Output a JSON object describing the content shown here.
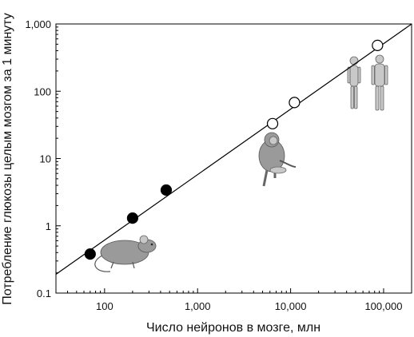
{
  "chart_data": {
    "type": "scatter",
    "xlabel": "Число нейронов в мозге, млн",
    "ylabel": "Потребление глюкозы целым мозгом за 1 минуту",
    "x_scale": "log",
    "y_scale": "log",
    "xlim": [
      30,
      200000
    ],
    "ylim": [
      0.1,
      1000
    ],
    "x_ticks": [
      100,
      1000,
      10000,
      100000
    ],
    "x_tick_labels": [
      "100",
      "1,000",
      "10,000",
      "100,000"
    ],
    "y_ticks": [
      0.1,
      1,
      10,
      100,
      1000
    ],
    "y_tick_labels": [
      "0.1",
      "1",
      "10",
      "100",
      "1,000"
    ],
    "grid": false,
    "series": [
      {
        "marker": "filled-circle",
        "color": "#000000",
        "points": [
          {
            "x": 70,
            "y": 0.38
          },
          {
            "x": 200,
            "y": 1.3
          },
          {
            "x": 460,
            "y": 3.4
          }
        ]
      },
      {
        "marker": "open-circle",
        "color": "#000000",
        "points": [
          {
            "x": 6400,
            "y": 33
          },
          {
            "x": 11000,
            "y": 68
          },
          {
            "x": 86000,
            "y": 480
          }
        ]
      }
    ],
    "fit_line": {
      "type": "power-law",
      "from": {
        "x": 30,
        "y": 0.19
      },
      "to": {
        "x": 200000,
        "y": 1000
      }
    },
    "illustrations": [
      {
        "icon": "mouse-illustration-icon"
      },
      {
        "icon": "monkey-illustration-icon"
      },
      {
        "icon": "humans-illustration-icon"
      }
    ]
  }
}
